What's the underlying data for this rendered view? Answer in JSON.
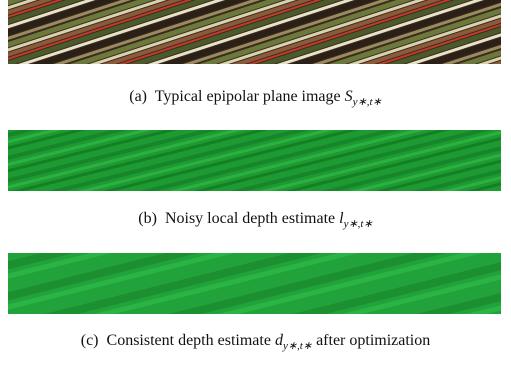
{
  "figures": [
    {
      "label": "(a)",
      "text": "Typical epipolar plane image",
      "symbol": "S",
      "subscript": "y∗,t∗"
    },
    {
      "label": "(b)",
      "text": "Noisy local depth estimate",
      "symbol": "l",
      "subscript": "y∗,t∗"
    },
    {
      "label": "(c)",
      "text": "Consistent depth estimate",
      "symbol": "d",
      "subscript": "y∗,t∗",
      "after": "after optimization"
    }
  ]
}
